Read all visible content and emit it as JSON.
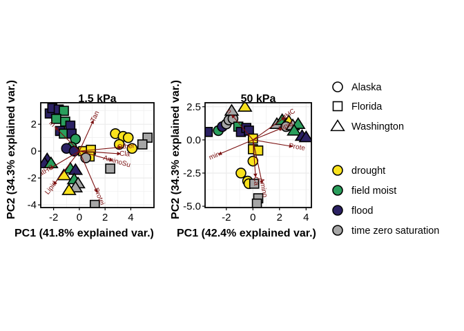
{
  "colors": {
    "drought": "#f9e21d",
    "field moist": "#2a9e5c",
    "flood": "#2b2163",
    "time zero saturation": "#a6a6a6",
    "loading": "#7a0e0e",
    "grid": "#ebebeb"
  },
  "legend": {
    "shapes": [
      {
        "label": "Alaska",
        "shape": "circle"
      },
      {
        "label": "Florida",
        "shape": "square"
      },
      {
        "label": "Washington",
        "shape": "triangle"
      }
    ],
    "treatments": [
      {
        "label": "drought"
      },
      {
        "label": "field moist"
      },
      {
        "label": "flood"
      },
      {
        "label": "time zero saturation"
      }
    ]
  },
  "chart_data": [
    {
      "type": "scatter",
      "title": "1.5 kPa",
      "xlabel": "PC1 (41.8% explained var.)",
      "ylabel": "PC2 (34.3% explained var.)",
      "xlim": [
        -3,
        5.8
      ],
      "ylim": [
        -4.2,
        3.6
      ],
      "xticks": [
        -2,
        0,
        2,
        4
      ],
      "yticks": [
        -4,
        -2,
        0,
        2
      ],
      "points": [
        {
          "x": -2.3,
          "y": 2.8,
          "shape": "square",
          "treatment": "flood"
        },
        {
          "x": -2.1,
          "y": 3.2,
          "shape": "square",
          "treatment": "flood"
        },
        {
          "x": -1.6,
          "y": 3.1,
          "shape": "square",
          "treatment": "flood"
        },
        {
          "x": -1.2,
          "y": 3.0,
          "shape": "square",
          "treatment": "field moist"
        },
        {
          "x": -1.8,
          "y": 2.4,
          "shape": "square",
          "treatment": "field moist"
        },
        {
          "x": -1.1,
          "y": 2.2,
          "shape": "square",
          "treatment": "field moist"
        },
        {
          "x": -0.7,
          "y": 1.9,
          "shape": "square",
          "treatment": "flood"
        },
        {
          "x": -1.5,
          "y": 1.5,
          "shape": "square",
          "treatment": "flood"
        },
        {
          "x": -1.2,
          "y": 1.3,
          "shape": "square",
          "treatment": "field moist"
        },
        {
          "x": -0.6,
          "y": 1.3,
          "shape": "square",
          "treatment": "flood"
        },
        {
          "x": -0.3,
          "y": 0.9,
          "shape": "circle",
          "treatment": "field moist"
        },
        {
          "x": -0.6,
          "y": 0.3,
          "shape": "circle",
          "treatment": "field moist"
        },
        {
          "x": -1.0,
          "y": 0.2,
          "shape": "circle",
          "treatment": "flood"
        },
        {
          "x": -0.4,
          "y": 0.0,
          "shape": "circle",
          "treatment": "flood"
        },
        {
          "x": 0.3,
          "y": 0.0,
          "shape": "square",
          "treatment": "drought"
        },
        {
          "x": 0.9,
          "y": 0.1,
          "shape": "square",
          "treatment": "drought"
        },
        {
          "x": 0.8,
          "y": -0.4,
          "shape": "square",
          "treatment": "drought"
        },
        {
          "x": 0.5,
          "y": -0.5,
          "shape": "circle",
          "treatment": "time zero saturation"
        },
        {
          "x": 2.8,
          "y": 1.3,
          "shape": "circle",
          "treatment": "drought"
        },
        {
          "x": 3.4,
          "y": 1.1,
          "shape": "circle",
          "treatment": "drought"
        },
        {
          "x": 3.8,
          "y": 1.0,
          "shape": "circle",
          "treatment": "drought"
        },
        {
          "x": 3.1,
          "y": 0.5,
          "shape": "circle",
          "treatment": "drought"
        },
        {
          "x": 4.1,
          "y": 0.2,
          "shape": "circle",
          "treatment": "drought"
        },
        {
          "x": 5.3,
          "y": 1.0,
          "shape": "square",
          "treatment": "time zero saturation"
        },
        {
          "x": 4.9,
          "y": 0.5,
          "shape": "square",
          "treatment": "time zero saturation"
        },
        {
          "x": 2.4,
          "y": -1.3,
          "shape": "square",
          "treatment": "time zero saturation"
        },
        {
          "x": 1.2,
          "y": -4.0,
          "shape": "square",
          "treatment": "time zero saturation"
        },
        {
          "x": -2.5,
          "y": -0.6,
          "shape": "triangle",
          "treatment": "flood"
        },
        {
          "x": -2.7,
          "y": -0.9,
          "shape": "triangle",
          "treatment": "flood"
        },
        {
          "x": -2.2,
          "y": -0.9,
          "shape": "triangle",
          "treatment": "field moist"
        },
        {
          "x": -0.7,
          "y": -1.3,
          "shape": "triangle",
          "treatment": "field moist"
        },
        {
          "x": -0.3,
          "y": -1.4,
          "shape": "triangle",
          "treatment": "flood"
        },
        {
          "x": -0.4,
          "y": -2.1,
          "shape": "triangle",
          "treatment": "field moist"
        },
        {
          "x": -0.1,
          "y": -2.4,
          "shape": "triangle",
          "treatment": "time zero saturation"
        },
        {
          "x": -0.3,
          "y": -2.7,
          "shape": "triangle",
          "treatment": "time zero saturation"
        },
        {
          "x": -1.2,
          "y": -1.8,
          "shape": "triangle",
          "treatment": "drought"
        },
        {
          "x": -0.8,
          "y": -2.9,
          "shape": "triangle",
          "treatment": "drought"
        }
      ],
      "loadings": [
        {
          "label": "Tan",
          "x": 1.1,
          "y": 2.3
        },
        {
          "label": "in",
          "x": -1.9,
          "y": 1.8
        },
        {
          "label": "Other",
          "x": 3.3,
          "y": 0.3
        },
        {
          "label": "Cla",
          "x": 3.2,
          "y": -0.2
        },
        {
          "label": "AminoSu",
          "x": 2.6,
          "y": -0.7
        },
        {
          "label": "Protei",
          "x": 1.4,
          "y": -3.1
        },
        {
          "label": "Lipid",
          "x": -2.0,
          "y": -2.5
        },
        {
          "label": "atHC",
          "x": -2.3,
          "y": -1.3
        }
      ]
    },
    {
      "type": "scatter",
      "title": "50 kPa",
      "xlabel": "PC1 (42.4% explained var.)",
      "ylabel": "",
      "xlim": [
        -3.6,
        4.4
      ],
      "ylim": [
        -5.1,
        2.8
      ],
      "xticks": [
        -2,
        0,
        2,
        4
      ],
      "yticks": [
        -5.0,
        -2.5,
        0.0,
        2.5
      ],
      "points": [
        {
          "x": -3.4,
          "y": 0.6,
          "shape": "square",
          "treatment": "flood"
        },
        {
          "x": -2.6,
          "y": 0.7,
          "shape": "circle",
          "treatment": "field moist"
        },
        {
          "x": -2.3,
          "y": 1.0,
          "shape": "circle",
          "treatment": "flood"
        },
        {
          "x": -2.0,
          "y": 1.2,
          "shape": "circle",
          "treatment": "time zero saturation"
        },
        {
          "x": -1.8,
          "y": 1.5,
          "shape": "circle",
          "treatment": "time zero saturation"
        },
        {
          "x": -1.5,
          "y": 1.6,
          "shape": "circle",
          "treatment": "time zero saturation"
        },
        {
          "x": -1.6,
          "y": 2.2,
          "shape": "triangle",
          "treatment": "time zero saturation"
        },
        {
          "x": -0.6,
          "y": 2.5,
          "shape": "triangle",
          "treatment": "drought"
        },
        {
          "x": -1.1,
          "y": 1.0,
          "shape": "square",
          "treatment": "field moist"
        },
        {
          "x": -0.9,
          "y": 0.6,
          "shape": "square",
          "treatment": "flood"
        },
        {
          "x": -0.5,
          "y": 0.9,
          "shape": "square",
          "treatment": "flood"
        },
        {
          "x": -0.3,
          "y": 0.7,
          "shape": "square",
          "treatment": "flood"
        },
        {
          "x": 0.0,
          "y": 0.1,
          "shape": "square",
          "treatment": "drought"
        },
        {
          "x": 0.0,
          "y": -0.7,
          "shape": "square",
          "treatment": "drought"
        },
        {
          "x": 0.4,
          "y": -0.8,
          "shape": "square",
          "treatment": "drought"
        },
        {
          "x": 0.0,
          "y": -1.6,
          "shape": "circle",
          "treatment": "drought"
        },
        {
          "x": -0.9,
          "y": -2.5,
          "shape": "circle",
          "treatment": "drought"
        },
        {
          "x": -0.4,
          "y": -3.1,
          "shape": "circle",
          "treatment": "drought"
        },
        {
          "x": -0.3,
          "y": -3.3,
          "shape": "circle",
          "treatment": "drought"
        },
        {
          "x": 0.1,
          "y": -3.3,
          "shape": "square",
          "treatment": "time zero saturation"
        },
        {
          "x": 0.4,
          "y": -4.4,
          "shape": "square",
          "treatment": "time zero saturation"
        },
        {
          "x": 0.3,
          "y": -4.8,
          "shape": "square",
          "treatment": "time zero saturation"
        },
        {
          "x": 1.8,
          "y": 1.2,
          "shape": "triangle",
          "treatment": "time zero saturation"
        },
        {
          "x": 2.2,
          "y": 1.5,
          "shape": "triangle",
          "treatment": "field moist"
        },
        {
          "x": 2.5,
          "y": 1.2,
          "shape": "triangle",
          "treatment": "field moist"
        },
        {
          "x": 2.7,
          "y": 1.4,
          "shape": "triangle",
          "treatment": "drought"
        },
        {
          "x": 2.5,
          "y": 1.0,
          "shape": "circle",
          "treatment": "time zero saturation"
        },
        {
          "x": 3.0,
          "y": 1.1,
          "shape": "triangle",
          "treatment": "time zero saturation"
        },
        {
          "x": 3.4,
          "y": 1.2,
          "shape": "triangle",
          "treatment": "field moist"
        },
        {
          "x": 3.1,
          "y": 0.7,
          "shape": "triangle",
          "treatment": "field moist"
        },
        {
          "x": 3.7,
          "y": 0.3,
          "shape": "triangle",
          "treatment": "flood"
        },
        {
          "x": 4.0,
          "y": 0.2,
          "shape": "triangle",
          "treatment": "flood"
        }
      ],
      "loadings": [
        {
          "label": "n",
          "x": -1.6,
          "y": 1.9
        },
        {
          "label": "atHC",
          "x": 2.4,
          "y": 1.7
        },
        {
          "label": "Lipid",
          "x": 2.2,
          "y": 0.9
        },
        {
          "label": "Prote",
          "x": 3.0,
          "y": -0.5
        },
        {
          "label": "min",
          "x": -2.6,
          "y": -1.1
        },
        {
          "label": "Amino",
          "x": 0.7,
          "y": -3.3
        },
        {
          "label": "Ca",
          "x": 0.2,
          "y": -2.8
        }
      ]
    }
  ]
}
